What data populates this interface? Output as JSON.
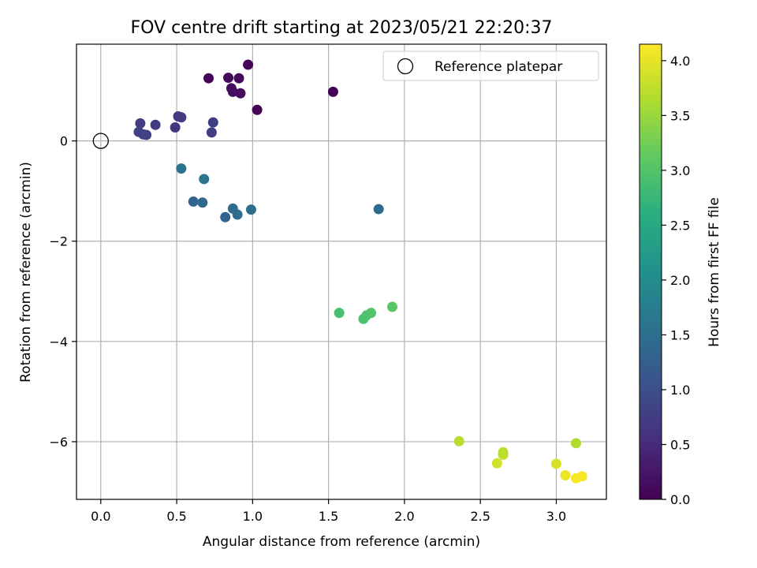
{
  "chart_data": {
    "type": "scatter",
    "title": "FOV centre drift starting at 2023/05/21 22:20:37",
    "xlabel": "Angular distance from reference (arcmin)",
    "ylabel": "Rotation from reference (arcmin)",
    "xlim": [
      -0.16,
      3.33
    ],
    "ylim": [
      -7.15,
      1.93
    ],
    "xticks": [
      0.0,
      0.5,
      1.0,
      1.5,
      2.0,
      2.5,
      3.0
    ],
    "xtick_labels": [
      "0.0",
      "0.5",
      "1.0",
      "1.5",
      "2.0",
      "2.5",
      "3.0"
    ],
    "yticks": [
      0,
      -2,
      -4,
      -6
    ],
    "ytick_labels": [
      "0",
      "−2",
      "−4",
      "−6"
    ],
    "grid": true,
    "legend": {
      "position": "top-right",
      "entries": [
        {
          "label": "Reference platepar",
          "marker": "hollow-circle"
        }
      ]
    },
    "reference_point": {
      "x": 0.0,
      "y": 0.0
    },
    "colorbar": {
      "label": "Hours from first FF file",
      "colormap": "viridis",
      "range": [
        0.0,
        4.15
      ],
      "ticks": [
        0.0,
        0.5,
        1.0,
        1.5,
        2.0,
        2.5,
        3.0,
        3.5,
        4.0
      ],
      "tick_labels": [
        "0.0",
        "0.5",
        "1.0",
        "1.5",
        "2.0",
        "2.5",
        "3.0",
        "3.5",
        "4.0"
      ]
    },
    "points": [
      {
        "x": 0.71,
        "y": 1.25,
        "hours": 0.05
      },
      {
        "x": 0.84,
        "y": 1.26,
        "hours": 0.08
      },
      {
        "x": 0.91,
        "y": 1.25,
        "hours": 0.1
      },
      {
        "x": 0.97,
        "y": 1.52,
        "hours": 0.05
      },
      {
        "x": 0.86,
        "y": 1.05,
        "hours": 0.12
      },
      {
        "x": 0.87,
        "y": 0.98,
        "hours": 0.15
      },
      {
        "x": 0.92,
        "y": 0.95,
        "hours": 0.13
      },
      {
        "x": 1.03,
        "y": 0.62,
        "hours": 0.03
      },
      {
        "x": 1.53,
        "y": 0.98,
        "hours": 0.02
      },
      {
        "x": 0.26,
        "y": 0.35,
        "hours": 0.75
      },
      {
        "x": 0.25,
        "y": 0.18,
        "hours": 0.78
      },
      {
        "x": 0.28,
        "y": 0.13,
        "hours": 0.8
      },
      {
        "x": 0.3,
        "y": 0.12,
        "hours": 0.82
      },
      {
        "x": 0.36,
        "y": 0.32,
        "hours": 0.72
      },
      {
        "x": 0.49,
        "y": 0.27,
        "hours": 0.65
      },
      {
        "x": 0.51,
        "y": 0.49,
        "hours": 0.68
      },
      {
        "x": 0.53,
        "y": 0.47,
        "hours": 0.7
      },
      {
        "x": 0.73,
        "y": 0.17,
        "hours": 0.73
      },
      {
        "x": 0.74,
        "y": 0.37,
        "hours": 0.77
      },
      {
        "x": 0.53,
        "y": -0.55,
        "hours": 1.55
      },
      {
        "x": 0.68,
        "y": -0.76,
        "hours": 1.6
      },
      {
        "x": 0.61,
        "y": -1.21,
        "hours": 1.35
      },
      {
        "x": 0.67,
        "y": -1.23,
        "hours": 1.4
      },
      {
        "x": 0.82,
        "y": -1.52,
        "hours": 1.3
      },
      {
        "x": 0.87,
        "y": -1.35,
        "hours": 1.45
      },
      {
        "x": 0.9,
        "y": -1.47,
        "hours": 1.5
      },
      {
        "x": 0.99,
        "y": -1.37,
        "hours": 1.48
      },
      {
        "x": 1.83,
        "y": -1.36,
        "hours": 1.42
      },
      {
        "x": 1.57,
        "y": -3.43,
        "hours": 2.9
      },
      {
        "x": 1.73,
        "y": -3.55,
        "hours": 2.95
      },
      {
        "x": 1.75,
        "y": -3.48,
        "hours": 2.97
      },
      {
        "x": 1.78,
        "y": -3.43,
        "hours": 3.0
      },
      {
        "x": 1.92,
        "y": -3.31,
        "hours": 3.05
      },
      {
        "x": 2.36,
        "y": -5.99,
        "hours": 3.7
      },
      {
        "x": 2.61,
        "y": -6.43,
        "hours": 3.85
      },
      {
        "x": 2.65,
        "y": -6.26,
        "hours": 3.75
      },
      {
        "x": 2.65,
        "y": -6.21,
        "hours": 3.72
      },
      {
        "x": 3.0,
        "y": -6.44,
        "hours": 3.9
      },
      {
        "x": 3.06,
        "y": -6.67,
        "hours": 4.05
      },
      {
        "x": 3.13,
        "y": -6.73,
        "hours": 4.1
      },
      {
        "x": 3.17,
        "y": -6.69,
        "hours": 4.12
      },
      {
        "x": 3.13,
        "y": -6.03,
        "hours": 3.65
      }
    ]
  }
}
